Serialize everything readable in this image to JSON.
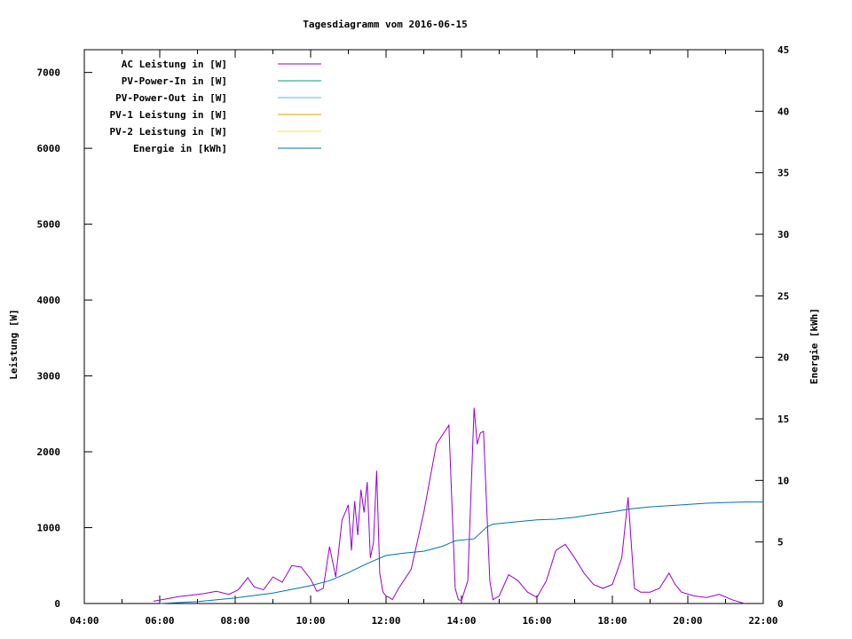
{
  "chart_data": {
    "type": "line",
    "title": "Tagesdiagramm vom 2016-06-15",
    "xlabel": "",
    "ylabel": "Leistung [W]",
    "y2label": "Energie [kWh]",
    "xlim": [
      "04:00",
      "22:00"
    ],
    "ylim": [
      0,
      7300
    ],
    "y2lim": [
      0,
      45
    ],
    "x_ticks": [
      "04:00",
      "06:00",
      "08:00",
      "10:00",
      "12:00",
      "14:00",
      "16:00",
      "18:00",
      "20:00",
      "22:00"
    ],
    "y_ticks": [
      0,
      1000,
      2000,
      3000,
      4000,
      5000,
      6000,
      7000
    ],
    "y2_ticks": [
      0,
      5,
      10,
      15,
      20,
      25,
      30,
      35,
      40,
      45
    ],
    "grid": false,
    "legend_position": "top-left",
    "series": [
      {
        "name": "AC Leistung in [W]",
        "axis": "left",
        "color": "#9400d3",
        "x": [
          "05:50",
          "06:10",
          "06:30",
          "06:50",
          "07:10",
          "07:30",
          "07:50",
          "08:05",
          "08:20",
          "08:30",
          "08:45",
          "09:00",
          "09:15",
          "09:30",
          "09:45",
          "10:00",
          "10:10",
          "10:20",
          "10:30",
          "10:40",
          "10:50",
          "11:00",
          "11:05",
          "11:10",
          "11:15",
          "11:20",
          "11:25",
          "11:30",
          "11:35",
          "11:40",
          "11:45",
          "11:50",
          "11:55",
          "12:00",
          "12:05",
          "12:10",
          "12:20",
          "12:40",
          "13:00",
          "13:20",
          "13:40",
          "13:50",
          "13:55",
          "14:00",
          "14:10",
          "14:20",
          "14:25",
          "14:30",
          "14:35",
          "14:45",
          "14:50",
          "15:00",
          "15:15",
          "15:30",
          "15:45",
          "16:00",
          "16:15",
          "16:30",
          "16:45",
          "17:00",
          "17:15",
          "17:30",
          "17:45",
          "18:00",
          "18:15",
          "18:25",
          "18:35",
          "18:45",
          "19:00",
          "19:15",
          "19:30",
          "19:40",
          "19:50",
          "20:10",
          "20:30",
          "20:50",
          "21:10",
          "21:30"
        ],
        "y": [
          30,
          60,
          90,
          110,
          130,
          160,
          120,
          180,
          340,
          220,
          180,
          350,
          280,
          500,
          480,
          320,
          160,
          200,
          750,
          350,
          1100,
          1300,
          700,
          1350,
          900,
          1500,
          1200,
          1600,
          600,
          800,
          1750,
          400,
          150,
          100,
          80,
          50,
          200,
          450,
          1200,
          2100,
          2350,
          200,
          50,
          40,
          300,
          2580,
          2100,
          2250,
          2270,
          300,
          50,
          100,
          380,
          300,
          150,
          80,
          300,
          700,
          780,
          600,
          400,
          250,
          200,
          250,
          600,
          1400,
          200,
          150,
          150,
          200,
          400,
          250,
          150,
          100,
          80,
          120,
          50,
          0
        ]
      },
      {
        "name": "PV-Power-In in [W]",
        "axis": "left",
        "color": "#009e73",
        "x": [],
        "y": []
      },
      {
        "name": "PV-Power-Out in [W]",
        "axis": "left",
        "color": "#56b4e9",
        "x": [],
        "y": []
      },
      {
        "name": "PV-1 Leistung in [W]",
        "axis": "left",
        "color": "#e69f00",
        "x": [],
        "y": []
      },
      {
        "name": "PV-2 Leistung in [W]",
        "axis": "left",
        "color": "#f0e442",
        "x": [],
        "y": []
      },
      {
        "name": "Energie in [kWh]",
        "axis": "right",
        "color": "#0072b2",
        "x": [
          "06:00",
          "07:00",
          "08:00",
          "09:00",
          "10:00",
          "10:30",
          "11:00",
          "11:30",
          "12:00",
          "12:30",
          "13:00",
          "13:30",
          "13:50",
          "14:20",
          "14:40",
          "14:50",
          "15:30",
          "16:00",
          "16:30",
          "17:00",
          "17:30",
          "18:00",
          "18:30",
          "19:00",
          "19:30",
          "20:00",
          "20:30",
          "21:00",
          "21:30",
          "22:00"
        ],
        "y": [
          0,
          0.15,
          0.45,
          0.85,
          1.45,
          1.85,
          2.5,
          3.25,
          3.9,
          4.1,
          4.25,
          4.65,
          5.1,
          5.25,
          6.2,
          6.45,
          6.65,
          6.8,
          6.85,
          7.0,
          7.25,
          7.45,
          7.7,
          7.85,
          7.95,
          8.05,
          8.15,
          8.2,
          8.25,
          8.25
        ]
      }
    ]
  }
}
